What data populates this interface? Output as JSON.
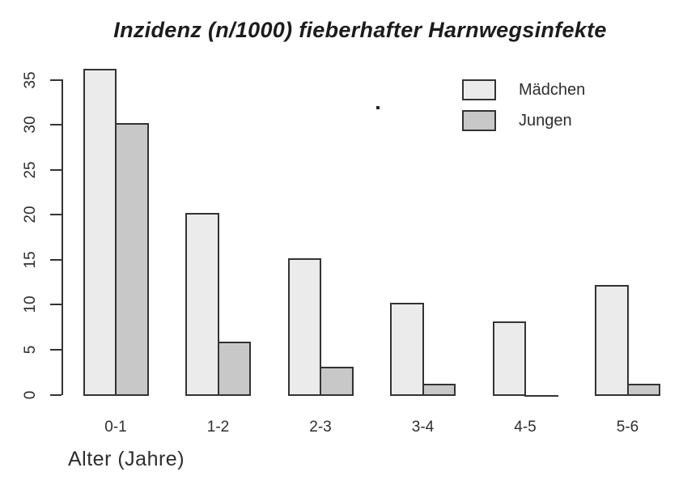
{
  "title": "Inzidenz (n/1000) fieberhafter Harnwegsinfekte",
  "chart_data": {
    "type": "bar",
    "title": "Inzidenz (n/1000) fieberhafter Harnwegsinfekte",
    "categories": [
      "0-1",
      "1-2",
      "2-3",
      "3-4",
      "4-5",
      "5-6"
    ],
    "series": [
      {
        "name": "Mädchen",
        "values": [
          36,
          20,
          15,
          10,
          8,
          12
        ],
        "color": "#ebebeb"
      },
      {
        "name": "Jungen",
        "values": [
          30,
          5.7,
          2.9,
          1,
          0,
          1
        ],
        "color": "#c8c8c8"
      }
    ],
    "xlabel": "Alter (Jahre)",
    "ylabel": "",
    "ylim": [
      0,
      35
    ],
    "yticks": [
      0,
      5,
      10,
      15,
      20,
      25,
      30,
      35
    ],
    "grid": false,
    "legend_position": "top-right",
    "bar_border_color": "#333333",
    "axis_color": "#333333",
    "text_color": "#2e2e2e",
    "background_color": "#ffffff"
  }
}
